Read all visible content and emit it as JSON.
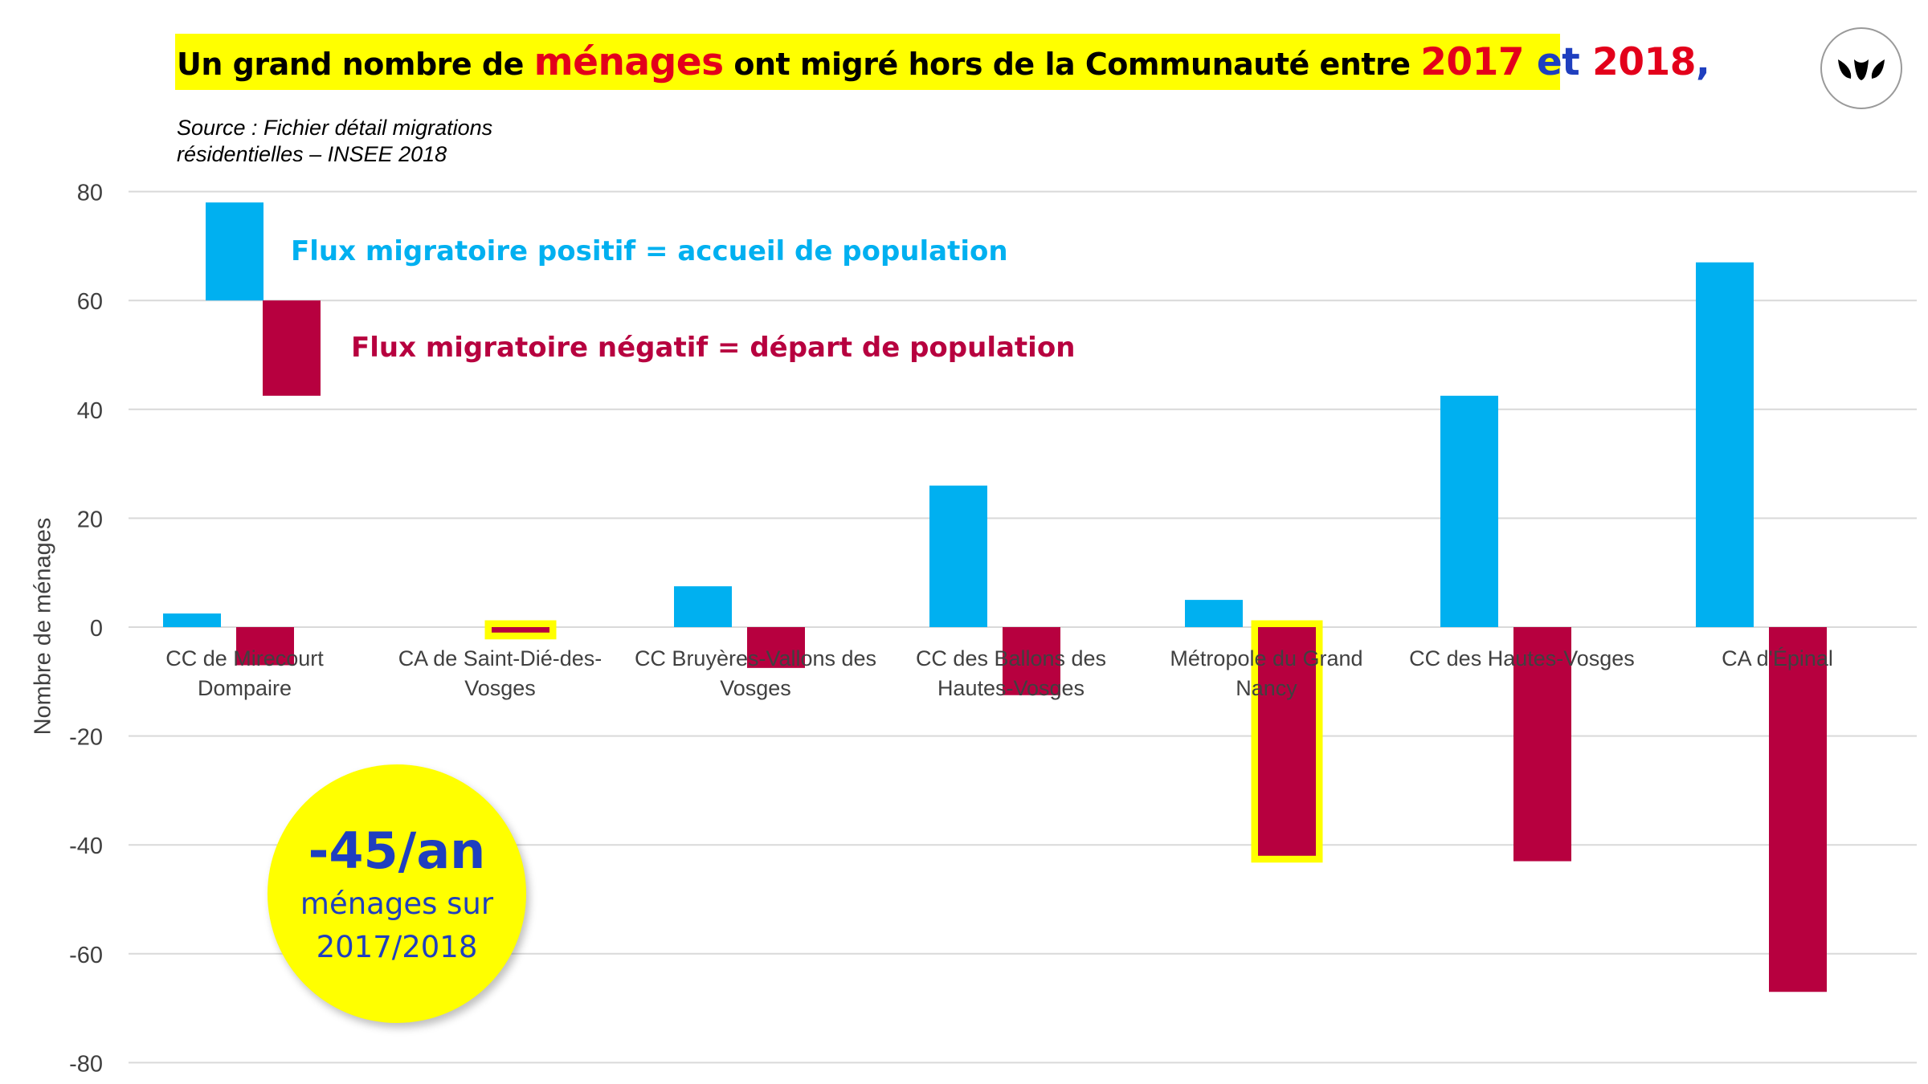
{
  "header": {
    "title_parts": {
      "p1": "Un grand nombre de ",
      "p2": "ménages",
      "p3": " ont migré hors de la Communauté entre ",
      "p4": "2017",
      "p5": " et ",
      "p6": "2018",
      "p7": ","
    },
    "source_line1": "Source : Fichier détail migrations",
    "source_line2": "résidentielles – INSEE 2018"
  },
  "logo": {
    "icon": "leaf-trio-logo-icon"
  },
  "legend": {
    "positive": "Flux migratoire positif = accueil de population",
    "negative": "Flux migratoire négatif = départ de population"
  },
  "callout": {
    "value": "-45/an",
    "line1": "ménages sur",
    "line2": "2017/2018"
  },
  "colors": {
    "positive": "#00b0f0",
    "negative": "#b7003f",
    "highlight": "#ffff00",
    "title_accent_red": "#e3001b",
    "title_accent_blue": "#1f3fbf"
  },
  "chart_data": {
    "type": "bar",
    "ylabel": "Nombre de ménages",
    "ylim": [
      -80,
      80
    ],
    "yticks": [
      80,
      60,
      40,
      20,
      0,
      -20,
      -40,
      -60,
      -80
    ],
    "grid": true,
    "categories": [
      [
        "CC de Mirecourt",
        "Dompaire"
      ],
      [
        "CA de Saint-Dié-des-",
        "Vosges"
      ],
      [
        "CC Bruyères-Vallons des",
        "Vosges"
      ],
      [
        "CC des Ballons des",
        "Hautes-Vosges"
      ],
      [
        "Métropole du Grand",
        "Nancy"
      ],
      [
        "CC des Hautes-Vosges"
      ],
      [
        "CA d'Épinal"
      ]
    ],
    "series": [
      {
        "values": [
          2.5,
          0,
          7.5,
          26,
          5,
          42.5,
          67
        ]
      },
      {
        "values": [
          -7,
          -1,
          -7.5,
          -12.5,
          -42,
          -43,
          -67
        ]
      }
    ],
    "highlighted_bars": [
      [
        1,
        1
      ],
      [
        4,
        1
      ]
    ],
    "legend_sample": {
      "positive_range": [
        60,
        78
      ],
      "negative_range": [
        42.5,
        60
      ]
    }
  }
}
